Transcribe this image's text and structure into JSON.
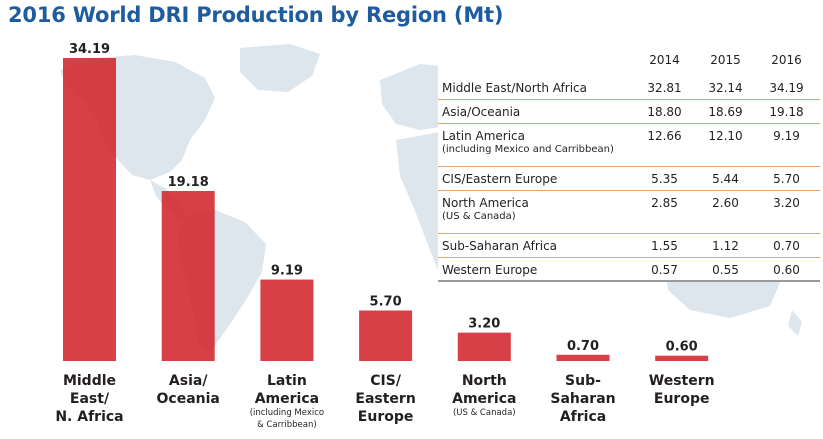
{
  "title": "2016 World DRI Production by Region (Mt)",
  "colors": {
    "title": "#1f5c9d",
    "bar": "#d42a32",
    "map": "#dce6ec",
    "table_rule": "#e8a46a",
    "table_bottom_rule": "#9a9a9a",
    "text": "#231f20"
  },
  "chart_data": {
    "type": "bar",
    "title": "2016 World DRI Production by Region (Mt)",
    "categories": [
      [
        "Middle",
        "East/",
        "N. Africa"
      ],
      [
        "Asia/",
        "Oceania"
      ],
      [
        "Latin",
        "America"
      ],
      [
        "CIS/",
        "Eastern",
        "Europe"
      ],
      [
        "North",
        "America"
      ],
      [
        "Sub-",
        "Saharan",
        "Africa"
      ],
      [
        "Western",
        "Europe"
      ]
    ],
    "category_notes": [
      [],
      [],
      [
        "(including Mexico",
        "& Carribbean)"
      ],
      [],
      [
        "(US & Canada)"
      ],
      [],
      []
    ],
    "values": [
      34.19,
      19.18,
      9.19,
      5.7,
      3.2,
      0.7,
      0.6
    ],
    "value_labels": [
      "34.19",
      "19.18",
      "9.19",
      "5.70",
      "3.20",
      "0.70",
      "0.60"
    ],
    "ylim": [
      0,
      34.19
    ],
    "grid": false,
    "legend": "none"
  },
  "table": {
    "headers": [
      "2014",
      "2015",
      "2016"
    ],
    "rows": [
      {
        "region": "Middle East/North Africa",
        "sub": "",
        "values": [
          "32.81",
          "32.14",
          "34.19"
        ]
      },
      {
        "region": "Asia/Oceania",
        "sub": "",
        "values": [
          "18.80",
          "18.69",
          "19.18"
        ]
      },
      {
        "region": "Latin America",
        "sub": "(including Mexico and Carribbean)",
        "values": [
          "12.66",
          "12.10",
          "9.19"
        ]
      },
      {
        "region": "CIS/Eastern Europe",
        "sub": "",
        "values": [
          "5.35",
          "5.44",
          "5.70"
        ]
      },
      {
        "region": "North America",
        "sub": "(US & Canada)",
        "values": [
          "2.85",
          "2.60",
          "3.20"
        ]
      },
      {
        "region": "Sub-Saharan Africa",
        "sub": "",
        "values": [
          "1.55",
          "1.12",
          "0.70"
        ]
      },
      {
        "region": "Western Europe",
        "sub": "",
        "values": [
          "0.57",
          "0.55",
          "0.60"
        ]
      }
    ]
  }
}
